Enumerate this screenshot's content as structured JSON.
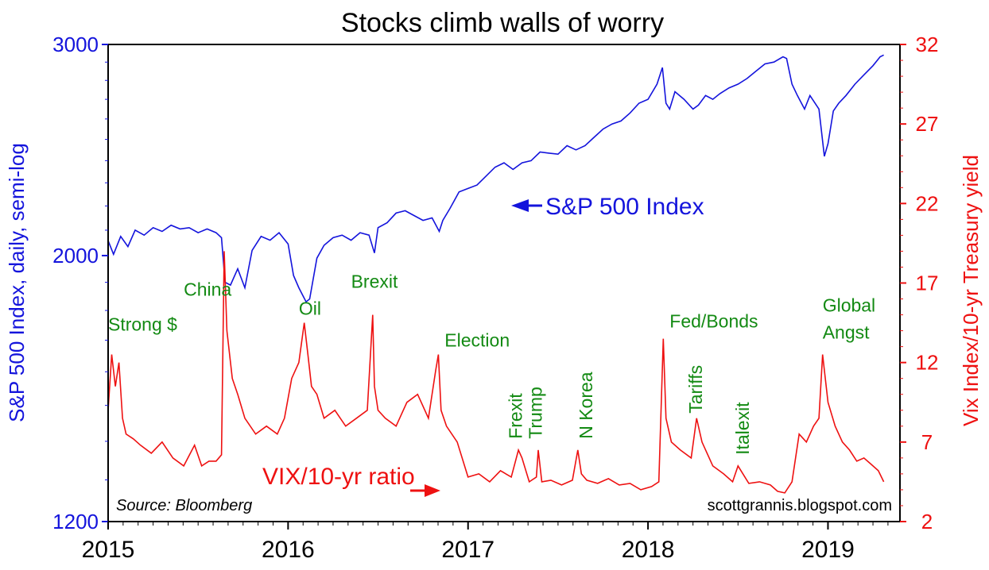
{
  "chart_data": {
    "type": "line",
    "title": "Stocks climb walls of worry",
    "ylabel_left": "S&P 500 Index, daily, semi-log",
    "ylabel_right": "Vix Index/10-yr Treasury yield",
    "left_axis": {
      "scale": "log",
      "range": [
        1200,
        3000
      ],
      "ticks": [
        "1200",
        "2000",
        "3000"
      ]
    },
    "right_axis": {
      "scale": "linear",
      "range": [
        2,
        32
      ],
      "ticks": [
        "2",
        "7",
        "12",
        "17",
        "22",
        "27",
        "32"
      ]
    },
    "x_range": [
      2015.0,
      2019.4
    ],
    "x_ticks": [
      "2015",
      "2016",
      "2017",
      "2018",
      "2019"
    ],
    "colors": {
      "sp500": "#1414dc",
      "ratio": "#ee1111",
      "annotation": "#138a13",
      "axis_left": "#1414dc",
      "axis_right": "#ee1111",
      "frame": "#000000"
    },
    "series": [
      {
        "name": "S&P 500 Index",
        "axis": "left",
        "x": [
          2015.0,
          2015.03,
          2015.07,
          2015.11,
          2015.15,
          2015.2,
          2015.25,
          2015.3,
          2015.35,
          2015.4,
          2015.45,
          2015.5,
          2015.55,
          2015.6,
          2015.63,
          2015.65,
          2015.68,
          2015.72,
          2015.76,
          2015.8,
          2015.85,
          2015.9,
          2015.95,
          2016.0,
          2016.03,
          2016.06,
          2016.1,
          2016.12,
          2016.16,
          2016.2,
          2016.25,
          2016.3,
          2016.35,
          2016.4,
          2016.45,
          2016.48,
          2016.5,
          2016.55,
          2016.6,
          2016.65,
          2016.7,
          2016.75,
          2016.8,
          2016.84,
          2016.86,
          2016.9,
          2016.95,
          2017.0,
          2017.05,
          2017.1,
          2017.15,
          2017.2,
          2017.25,
          2017.3,
          2017.35,
          2017.4,
          2017.45,
          2017.5,
          2017.55,
          2017.6,
          2017.65,
          2017.7,
          2017.75,
          2017.8,
          2017.85,
          2017.9,
          2017.95,
          2018.0,
          2018.05,
          2018.08,
          2018.1,
          2018.12,
          2018.15,
          2018.2,
          2018.25,
          2018.28,
          2018.32,
          2018.36,
          2018.4,
          2018.45,
          2018.5,
          2018.55,
          2018.6,
          2018.65,
          2018.7,
          2018.75,
          2018.77,
          2018.8,
          2018.83,
          2018.87,
          2018.9,
          2018.95,
          2018.98,
          2019.0,
          2019.03,
          2019.06,
          2019.1,
          2019.15,
          2019.2,
          2019.25,
          2019.29,
          2019.31
        ],
        "values": [
          2058,
          2005,
          2075,
          2035,
          2100,
          2080,
          2110,
          2095,
          2120,
          2105,
          2110,
          2090,
          2105,
          2090,
          2070,
          1900,
          1890,
          1950,
          1880,
          2020,
          2075,
          2060,
          2090,
          2045,
          1925,
          1880,
          1830,
          1840,
          1990,
          2040,
          2070,
          2080,
          2060,
          2090,
          2080,
          2010,
          2110,
          2130,
          2170,
          2180,
          2160,
          2140,
          2150,
          2095,
          2140,
          2190,
          2260,
          2275,
          2290,
          2330,
          2370,
          2390,
          2360,
          2390,
          2400,
          2440,
          2435,
          2430,
          2470,
          2450,
          2470,
          2510,
          2550,
          2575,
          2590,
          2630,
          2680,
          2700,
          2780,
          2870,
          2680,
          2650,
          2740,
          2700,
          2650,
          2670,
          2720,
          2700,
          2730,
          2760,
          2780,
          2810,
          2850,
          2890,
          2900,
          2930,
          2920,
          2780,
          2720,
          2650,
          2720,
          2650,
          2420,
          2480,
          2640,
          2680,
          2720,
          2780,
          2830,
          2880,
          2930,
          2940
        ]
      },
      {
        "name": "VIX/10-yr ratio",
        "axis": "right",
        "x": [
          2015.0,
          2015.02,
          2015.04,
          2015.06,
          2015.08,
          2015.1,
          2015.14,
          2015.18,
          2015.24,
          2015.3,
          2015.36,
          2015.42,
          2015.48,
          2015.52,
          2015.56,
          2015.6,
          2015.63,
          2015.645,
          2015.66,
          2015.69,
          2015.72,
          2015.76,
          2015.82,
          2015.88,
          2015.94,
          2015.98,
          2016.02,
          2016.06,
          2016.09,
          2016.11,
          2016.13,
          2016.16,
          2016.2,
          2016.26,
          2016.32,
          2016.38,
          2016.44,
          2016.47,
          2016.48,
          2016.5,
          2016.54,
          2016.6,
          2016.66,
          2016.72,
          2016.78,
          2016.82,
          2016.835,
          2016.85,
          2016.88,
          2016.94,
          2017.0,
          2017.06,
          2017.12,
          2017.18,
          2017.24,
          2017.28,
          2017.3,
          2017.34,
          2017.38,
          2017.39,
          2017.41,
          2017.46,
          2017.52,
          2017.58,
          2017.61,
          2017.63,
          2017.66,
          2017.72,
          2017.78,
          2017.84,
          2017.9,
          2017.96,
          2018.02,
          2018.06,
          2018.085,
          2018.1,
          2018.13,
          2018.18,
          2018.24,
          2018.27,
          2018.3,
          2018.36,
          2018.42,
          2018.47,
          2018.5,
          2018.56,
          2018.62,
          2018.68,
          2018.72,
          2018.76,
          2018.8,
          2018.84,
          2018.88,
          2018.92,
          2018.95,
          2018.97,
          2019.0,
          2019.04,
          2019.08,
          2019.12,
          2019.16,
          2019.2,
          2019.24,
          2019.28,
          2019.31
        ],
        "values": [
          9.0,
          12.5,
          10.5,
          12.0,
          8.5,
          7.5,
          7.2,
          6.8,
          6.3,
          7.0,
          6.0,
          5.5,
          6.8,
          5.5,
          5.8,
          5.8,
          6.2,
          19.0,
          14.0,
          11.0,
          10.0,
          8.5,
          7.5,
          8.0,
          7.5,
          8.5,
          11.0,
          12.0,
          14.5,
          12.5,
          10.5,
          10.0,
          8.5,
          9.0,
          8.0,
          8.5,
          9.0,
          15.0,
          10.5,
          9.0,
          8.5,
          8.0,
          9.5,
          10.0,
          8.5,
          11.5,
          12.5,
          9.0,
          8.0,
          7.0,
          4.8,
          5.0,
          4.5,
          5.2,
          4.8,
          6.5,
          6.0,
          4.5,
          4.8,
          6.5,
          4.5,
          4.6,
          4.3,
          4.6,
          6.5,
          5.0,
          4.6,
          4.4,
          4.7,
          4.3,
          4.4,
          4.0,
          4.2,
          4.5,
          13.5,
          8.5,
          7.0,
          6.5,
          6.0,
          8.5,
          7.0,
          5.5,
          5.0,
          4.5,
          5.5,
          4.4,
          4.5,
          4.3,
          3.9,
          3.8,
          4.5,
          7.5,
          7.0,
          8.0,
          8.5,
          12.5,
          9.5,
          8.0,
          7.0,
          6.5,
          5.8,
          6.0,
          5.6,
          5.2,
          4.5
        ]
      }
    ],
    "labels": {
      "sp500": "S&P 500 Index",
      "ratio": "VIX/10-yr ratio",
      "source": "Source: Bloomberg",
      "credit": "scottgrannis.blogspot.com"
    },
    "annotations": [
      {
        "text": "Strong $",
        "x": 2015.0,
        "y": 14.0,
        "rotate": false
      },
      {
        "text": "China",
        "x": 2015.42,
        "y": 16.2,
        "rotate": false
      },
      {
        "text": "Oil",
        "x": 2016.06,
        "y": 15.0,
        "rotate": false
      },
      {
        "text": "Brexit",
        "x": 2016.35,
        "y": 16.7,
        "rotate": false
      },
      {
        "text": "Election",
        "x": 2016.87,
        "y": 13.0,
        "rotate": false
      },
      {
        "text": "Frexit",
        "x": 2017.3,
        "y": 7.2,
        "rotate": true
      },
      {
        "text": "Trump",
        "x": 2017.41,
        "y": 7.2,
        "rotate": true
      },
      {
        "text": "N Korea",
        "x": 2017.69,
        "y": 7.2,
        "rotate": true
      },
      {
        "text": "Fed/Bonds",
        "x": 2018.12,
        "y": 14.2,
        "rotate": false
      },
      {
        "text": "Tariffs",
        "x": 2018.3,
        "y": 8.8,
        "rotate": true
      },
      {
        "text": "Italexit",
        "x": 2018.56,
        "y": 6.2,
        "rotate": true
      },
      {
        "text": "Global",
        "x": 2018.97,
        "y": 15.2,
        "rotate": false
      },
      {
        "text": "Angst",
        "x": 2018.97,
        "y": 13.5,
        "rotate": false
      }
    ]
  }
}
